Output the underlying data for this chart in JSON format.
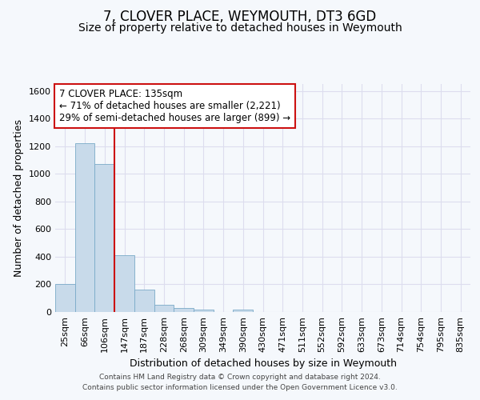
{
  "title": "7, CLOVER PLACE, WEYMOUTH, DT3 6GD",
  "subtitle": "Size of property relative to detached houses in Weymouth",
  "xlabel": "Distribution of detached houses by size in Weymouth",
  "ylabel": "Number of detached properties",
  "categories": [
    "25sqm",
    "66sqm",
    "106sqm",
    "147sqm",
    "187sqm",
    "228sqm",
    "268sqm",
    "309sqm",
    "349sqm",
    "390sqm",
    "430sqm",
    "471sqm",
    "511sqm",
    "552sqm",
    "592sqm",
    "633sqm",
    "673sqm",
    "714sqm",
    "754sqm",
    "795sqm",
    "835sqm"
  ],
  "values": [
    200,
    1220,
    1070,
    410,
    160,
    55,
    30,
    20,
    0,
    20,
    0,
    0,
    0,
    0,
    0,
    0,
    0,
    0,
    0,
    0,
    0
  ],
  "bar_color": "#c8daea",
  "bar_edge_color": "#7aaac8",
  "vline_color": "#cc1111",
  "vline_x_idx": 3,
  "annotation_text": "7 CLOVER PLACE: 135sqm\n← 71% of detached houses are smaller (2,221)\n29% of semi-detached houses are larger (899) →",
  "annotation_box_facecolor": "#ffffff",
  "annotation_box_edgecolor": "#cc1111",
  "ylim": [
    0,
    1650
  ],
  "yticks": [
    0,
    200,
    400,
    600,
    800,
    1000,
    1200,
    1400,
    1600
  ],
  "footer1": "Contains HM Land Registry data © Crown copyright and database right 2024.",
  "footer2": "Contains public sector information licensed under the Open Government Licence v3.0.",
  "bg_color": "#f5f8fc",
  "plot_bg_color": "#f5f8fc",
  "grid_color": "#ddddee",
  "title_fontsize": 12,
  "subtitle_fontsize": 10,
  "tick_fontsize": 8,
  "ylabel_fontsize": 9,
  "xlabel_fontsize": 9,
  "footer_fontsize": 6.5,
  "annot_fontsize": 8.5
}
